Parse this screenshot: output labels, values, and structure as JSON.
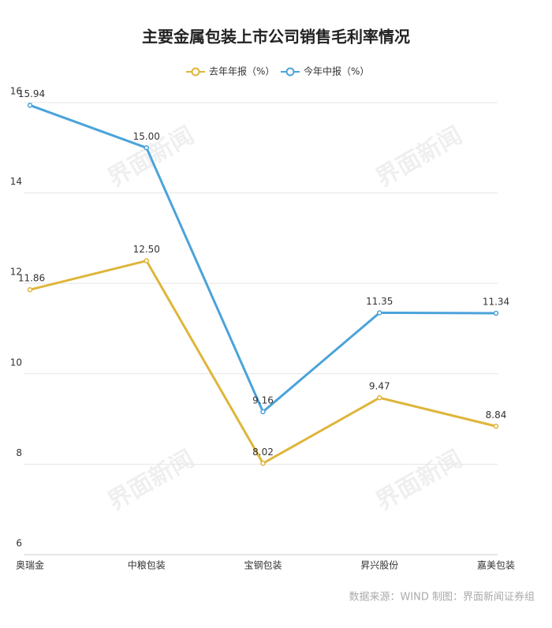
{
  "chart_data": {
    "type": "line",
    "title": "主要金属包装上市公司销售毛利率情况",
    "categories": [
      "奥瑞金",
      "中粮包装",
      "宝钢包装",
      "昇兴股份",
      "嘉美包装"
    ],
    "series": [
      {
        "name": "去年年报（%）",
        "color": "#dfb53a",
        "values": [
          11.86,
          12.5,
          8.02,
          9.47,
          8.84
        ],
        "value_labels": [
          "11.86",
          "12.50",
          "8.02",
          "9.47",
          "8.84"
        ]
      },
      {
        "name": "今年中报（%）",
        "color": "#4ba3da",
        "values": [
          15.94,
          15.0,
          9.16,
          11.35,
          11.34
        ],
        "value_labels": [
          "15.94",
          "15.00",
          "9.16",
          "11.35",
          "11.34"
        ]
      }
    ],
    "ylim": [
      6,
      16
    ],
    "yticks": [
      6,
      8,
      10,
      12,
      14,
      16
    ],
    "grid": true,
    "legend": "top",
    "source": "数据来源：WIND 制图：界面新闻证券组",
    "watermark": "界面新闻"
  }
}
